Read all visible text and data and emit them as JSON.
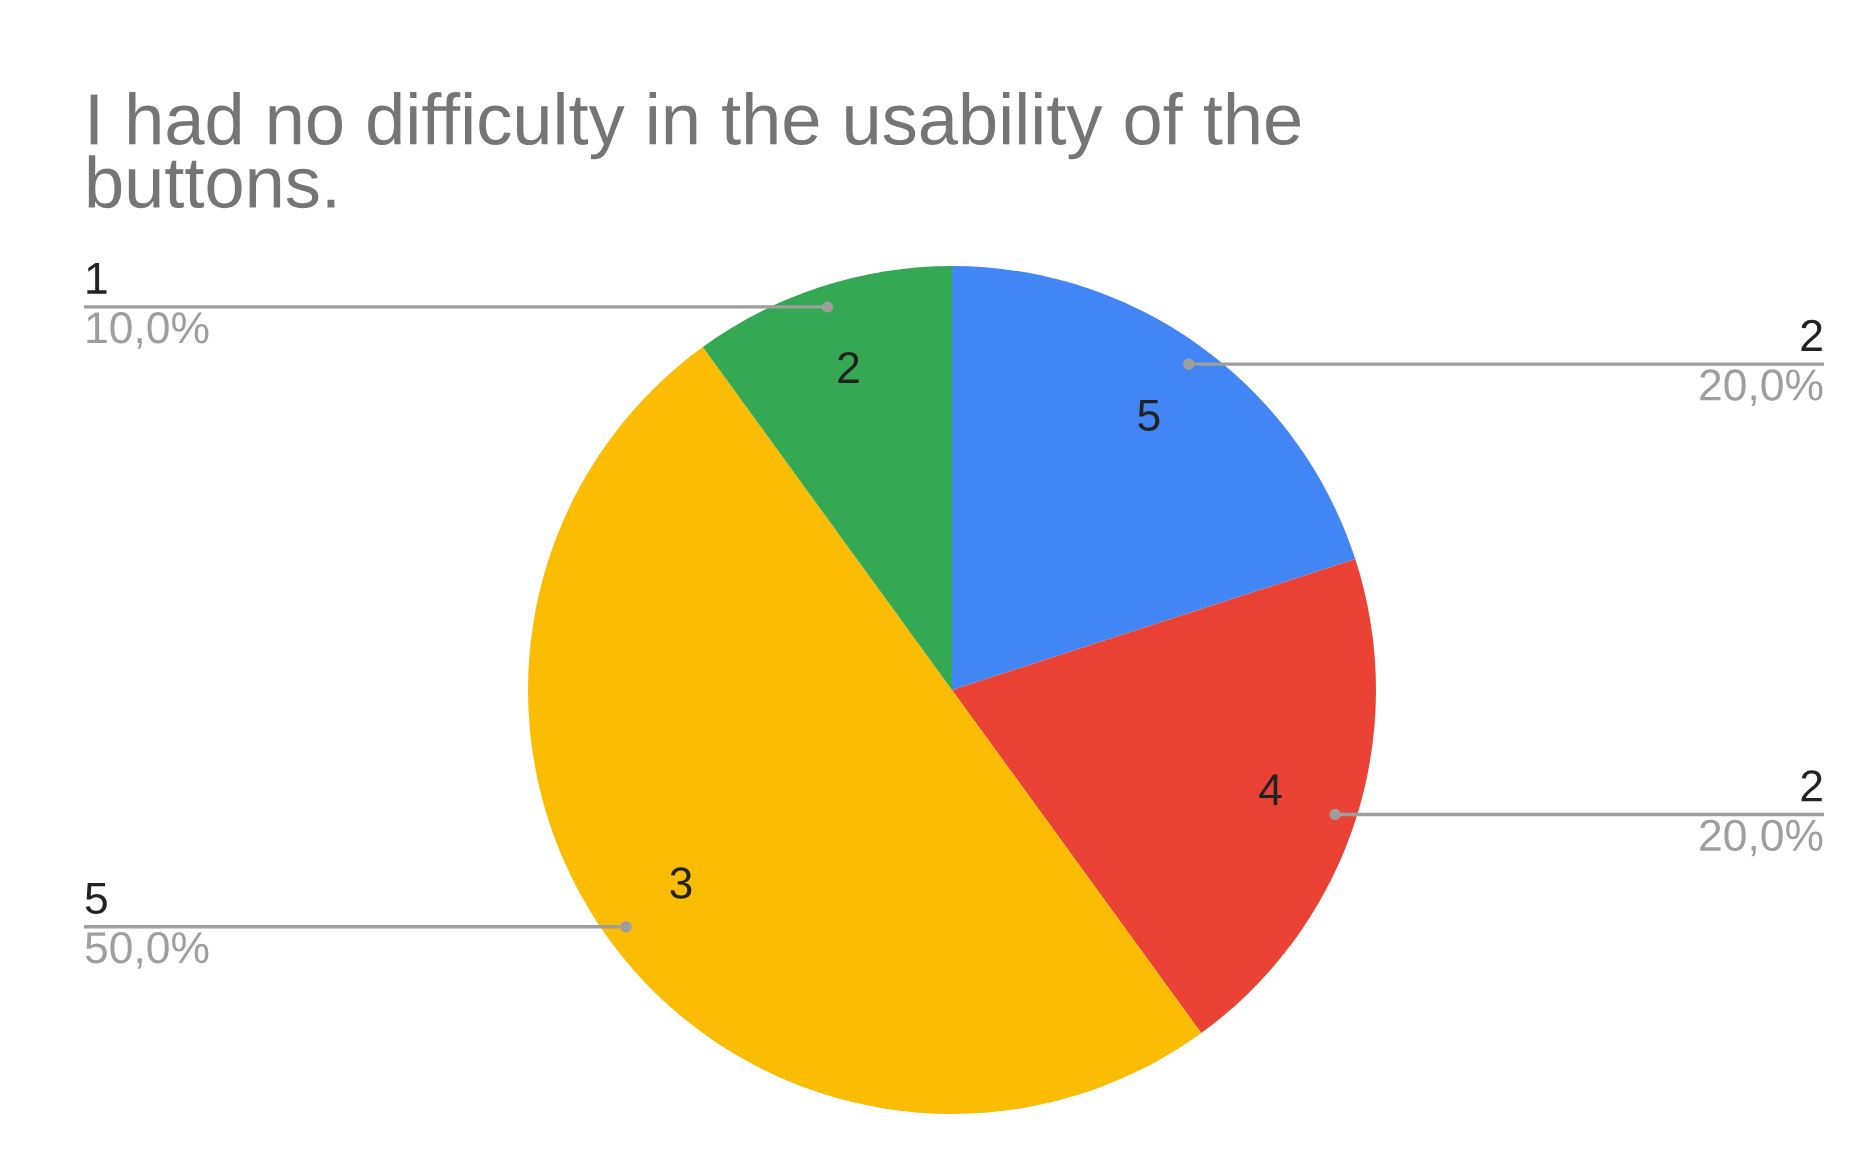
{
  "chart_data": {
    "type": "pie",
    "title": "I had no difficulty in the usability of the buttons.",
    "categories": [
      "5",
      "4",
      "3",
      "2"
    ],
    "values": [
      2,
      2,
      5,
      1
    ],
    "colors": [
      "#4285f4",
      "#ea4335",
      "#fbbc04",
      "#34a853"
    ],
    "value_labels": [
      "2\n20,0%",
      "2\n20,0%",
      "5\n50,0%",
      "1\n10,0%"
    ]
  }
}
